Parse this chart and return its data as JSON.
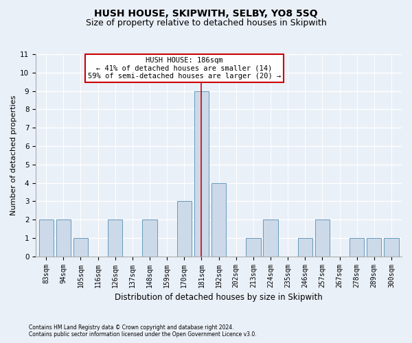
{
  "title": "HUSH HOUSE, SKIPWITH, SELBY, YO8 5SQ",
  "subtitle": "Size of property relative to detached houses in Skipwith",
  "xlabel": "Distribution of detached houses by size in Skipwith",
  "ylabel": "Number of detached properties",
  "categories": [
    "83sqm",
    "94sqm",
    "105sqm",
    "116sqm",
    "126sqm",
    "137sqm",
    "148sqm",
    "159sqm",
    "170sqm",
    "181sqm",
    "192sqm",
    "202sqm",
    "213sqm",
    "224sqm",
    "235sqm",
    "246sqm",
    "257sqm",
    "267sqm",
    "278sqm",
    "289sqm",
    "300sqm"
  ],
  "values": [
    2,
    2,
    1,
    0,
    2,
    0,
    2,
    0,
    3,
    9,
    4,
    0,
    1,
    2,
    0,
    1,
    2,
    0,
    1,
    1,
    1
  ],
  "bar_color": "#ccd9e8",
  "bar_edge_color": "#6699bb",
  "highlight_index": 9,
  "highlight_line_color": "#cc0000",
  "annotation_line1": "HUSH HOUSE: 186sqm",
  "annotation_line2": "← 41% of detached houses are smaller (14)",
  "annotation_line3": "59% of semi-detached houses are larger (20) →",
  "annotation_box_color": "#ffffff",
  "annotation_box_edge_color": "#cc0000",
  "ylim": [
    0,
    11
  ],
  "yticks": [
    0,
    1,
    2,
    3,
    4,
    5,
    6,
    7,
    8,
    9,
    10,
    11
  ],
  "footnote1": "Contains HM Land Registry data © Crown copyright and database right 2024.",
  "footnote2": "Contains public sector information licensed under the Open Government Licence v3.0.",
  "bg_color": "#eaf0f8",
  "grid_color": "#ffffff",
  "title_fontsize": 10,
  "subtitle_fontsize": 9,
  "label_fontsize": 8,
  "tick_fontsize": 7,
  "annot_fontsize": 7.5,
  "footnote_fontsize": 5.5
}
